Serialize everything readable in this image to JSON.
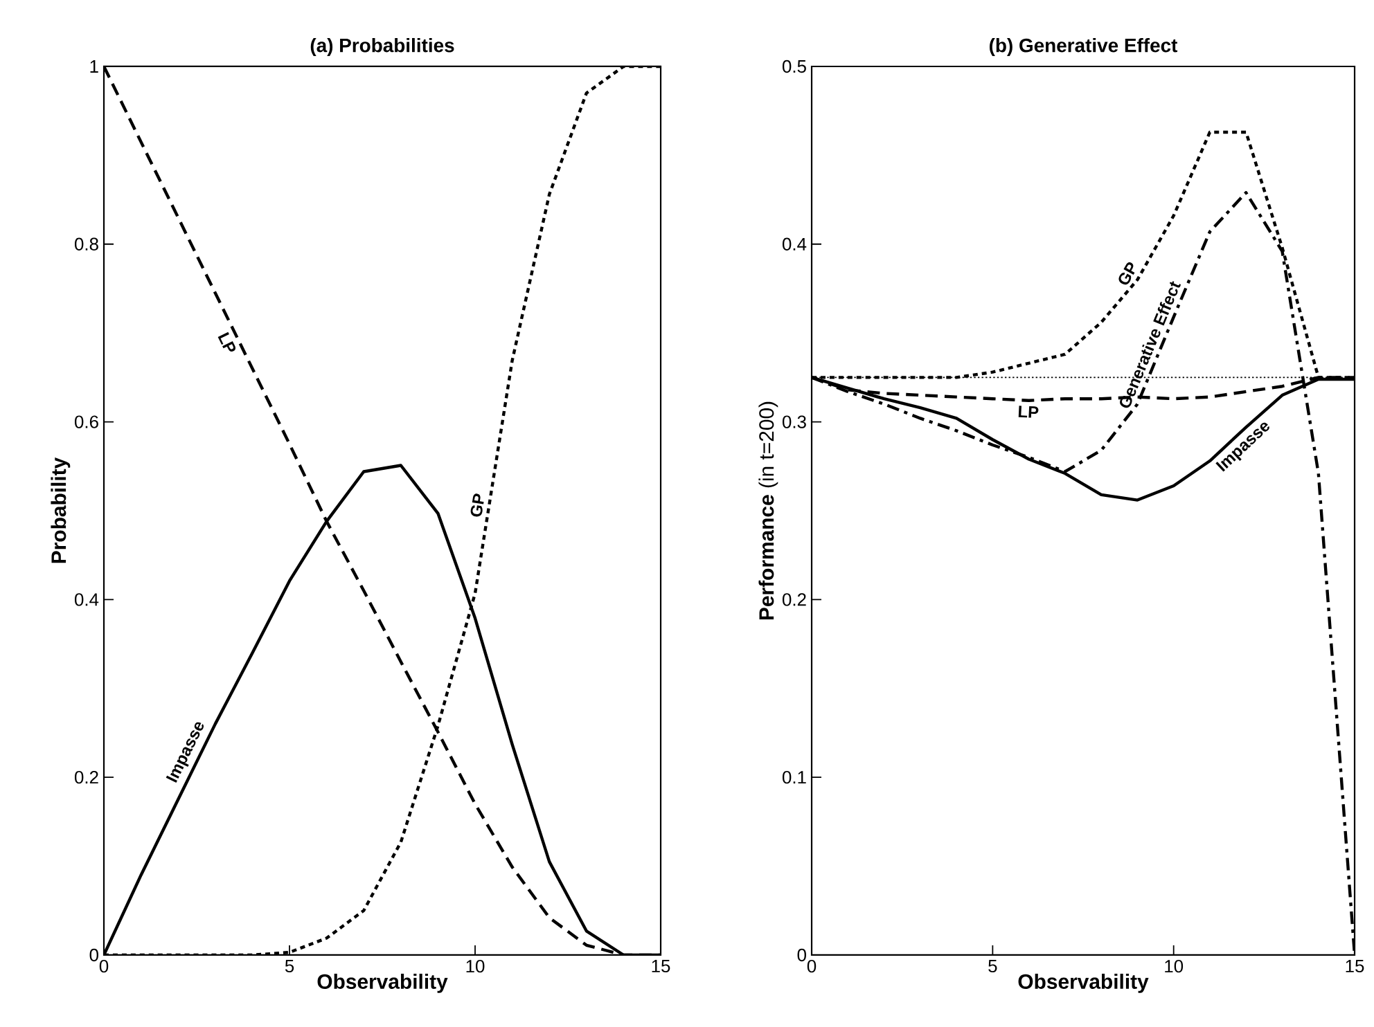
{
  "chart_data": [
    {
      "type": "line",
      "title": "(a) Probabilities",
      "xlabel": "Observability",
      "ylabel": "Probability",
      "x": [
        0,
        1,
        2,
        3,
        4,
        5,
        6,
        7,
        8,
        9,
        10,
        11,
        12,
        13,
        14,
        15
      ],
      "series": [
        {
          "name": "Impasse",
          "color": "#000000",
          "line_style": "solid",
          "values": [
            0,
            0.09,
            0.175,
            0.26,
            0.34,
            0.421,
            0.488,
            0.544,
            0.551,
            0.497,
            0.379,
            0.237,
            0.105,
            0.027,
            0,
            0
          ]
        },
        {
          "name": "LP",
          "color": "#000000",
          "line_style": "dashed",
          "values": [
            1,
            0.915,
            0.83,
            0.745,
            0.66,
            0.575,
            0.488,
            0.41,
            0.33,
            0.251,
            0.17,
            0.099,
            0.042,
            0.011,
            0,
            0
          ]
        },
        {
          "name": "GP",
          "color": "#000000",
          "line_style": "dotted",
          "values": [
            0,
            0,
            0,
            0,
            0,
            0.003,
            0.019,
            0.05,
            0.127,
            0.258,
            0.407,
            0.669,
            0.856,
            0.97,
            1,
            1
          ]
        }
      ],
      "xlim": [
        0,
        15
      ],
      "ylim": [
        0,
        1
      ],
      "xticks": [
        0,
        5,
        10,
        15
      ],
      "yticks": [
        0,
        0.2,
        0.4,
        0.6,
        0.8,
        1
      ]
    },
    {
      "type": "line",
      "title": "(b) Generative Effect",
      "xlabel": "Observability",
      "ylabel": "**Performance** (in t=200)",
      "x": [
        0,
        1,
        2,
        3,
        4,
        5,
        6,
        7,
        8,
        9,
        10,
        11,
        12,
        13,
        14,
        15
      ],
      "series": [
        {
          "name": "Impasse",
          "color": "#000000",
          "line_style": "solid",
          "values": [
            0.325,
            0.319,
            0.313,
            0.308,
            0.302,
            0.29,
            0.279,
            0.271,
            0.259,
            0.256,
            0.264,
            0.278,
            0.297,
            0.315,
            0.324,
            0.324
          ]
        },
        {
          "name": "LP",
          "color": "#000000",
          "line_style": "dashed",
          "values": [
            0.325,
            0.318,
            0.316,
            0.315,
            0.314,
            0.313,
            0.312,
            0.313,
            0.313,
            0.314,
            0.313,
            0.314,
            0.317,
            0.32,
            0.325,
            0.325
          ]
        },
        {
          "name": "GP",
          "color": "#000000",
          "line_style": "dotted",
          "values": [
            0.325,
            0.325,
            0.325,
            0.325,
            0.325,
            0.328,
            0.333,
            0.338,
            0.356,
            0.38,
            0.416,
            0.463,
            0.463,
            0.398,
            0.325,
            0.325
          ]
        },
        {
          "name": "Generative Effect",
          "color": "#000000",
          "line_style": "dashdot",
          "values": [
            0.325,
            0.317,
            0.31,
            0.302,
            0.295,
            0.287,
            0.28,
            0.272,
            0.284,
            0.31,
            0.359,
            0.407,
            0.429,
            0.396,
            0.271,
            0
          ]
        }
      ],
      "ref_lines": [
        {
          "axis": "y",
          "value": 0.325,
          "color": "#000000",
          "line_style": "dotted"
        }
      ],
      "xlim": [
        0,
        15
      ],
      "ylim": [
        0,
        0.5
      ],
      "xticks": [
        0,
        5,
        10,
        15
      ],
      "yticks": [
        0,
        0.1,
        0.2,
        0.3,
        0.4,
        0.5
      ]
    }
  ]
}
